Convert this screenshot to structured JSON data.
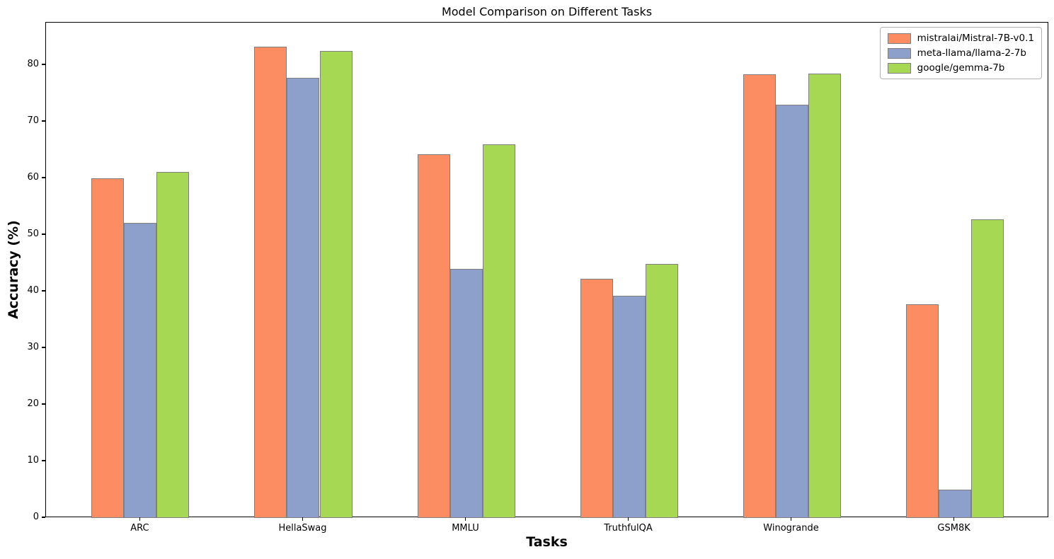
{
  "figure": {
    "background": "#ffffff",
    "axis_color": "#000000"
  },
  "chart_data": {
    "type": "bar",
    "title": "Model Comparison on Different Tasks",
    "xlabel": "Tasks",
    "ylabel": "Accuracy (%)",
    "categories": [
      "ARC",
      "HellaSwag",
      "MMLU",
      "TruthfulQA",
      "Winogrande",
      "GSM8K"
    ],
    "series": [
      {
        "name": "mistralai/Mistral-7B-v0.1",
        "color": "#FC8D62",
        "values": [
          60.0,
          83.3,
          64.2,
          42.2,
          78.4,
          37.8
        ]
      },
      {
        "name": "meta-llama/llama-2-7b",
        "color": "#8DA0CB",
        "values": [
          52.1,
          77.7,
          44.0,
          39.3,
          73.0,
          5.0
        ]
      },
      {
        "name": "google/gemma-7b",
        "color": "#A6D854",
        "values": [
          61.1,
          82.5,
          66.0,
          44.9,
          78.5,
          52.8
        ]
      }
    ],
    "yticks": [
      0,
      10,
      20,
      30,
      40,
      50,
      60,
      70,
      80
    ],
    "ylim": [
      0,
      87.5
    ],
    "xlim": [
      -0.58,
      5.58
    ],
    "bar_width": 0.2,
    "group_offsets": [
      -0.2,
      0,
      0.2
    ],
    "bar_edge_color": "#7f7f7f",
    "legend_position": "upper right",
    "grid": false
  }
}
